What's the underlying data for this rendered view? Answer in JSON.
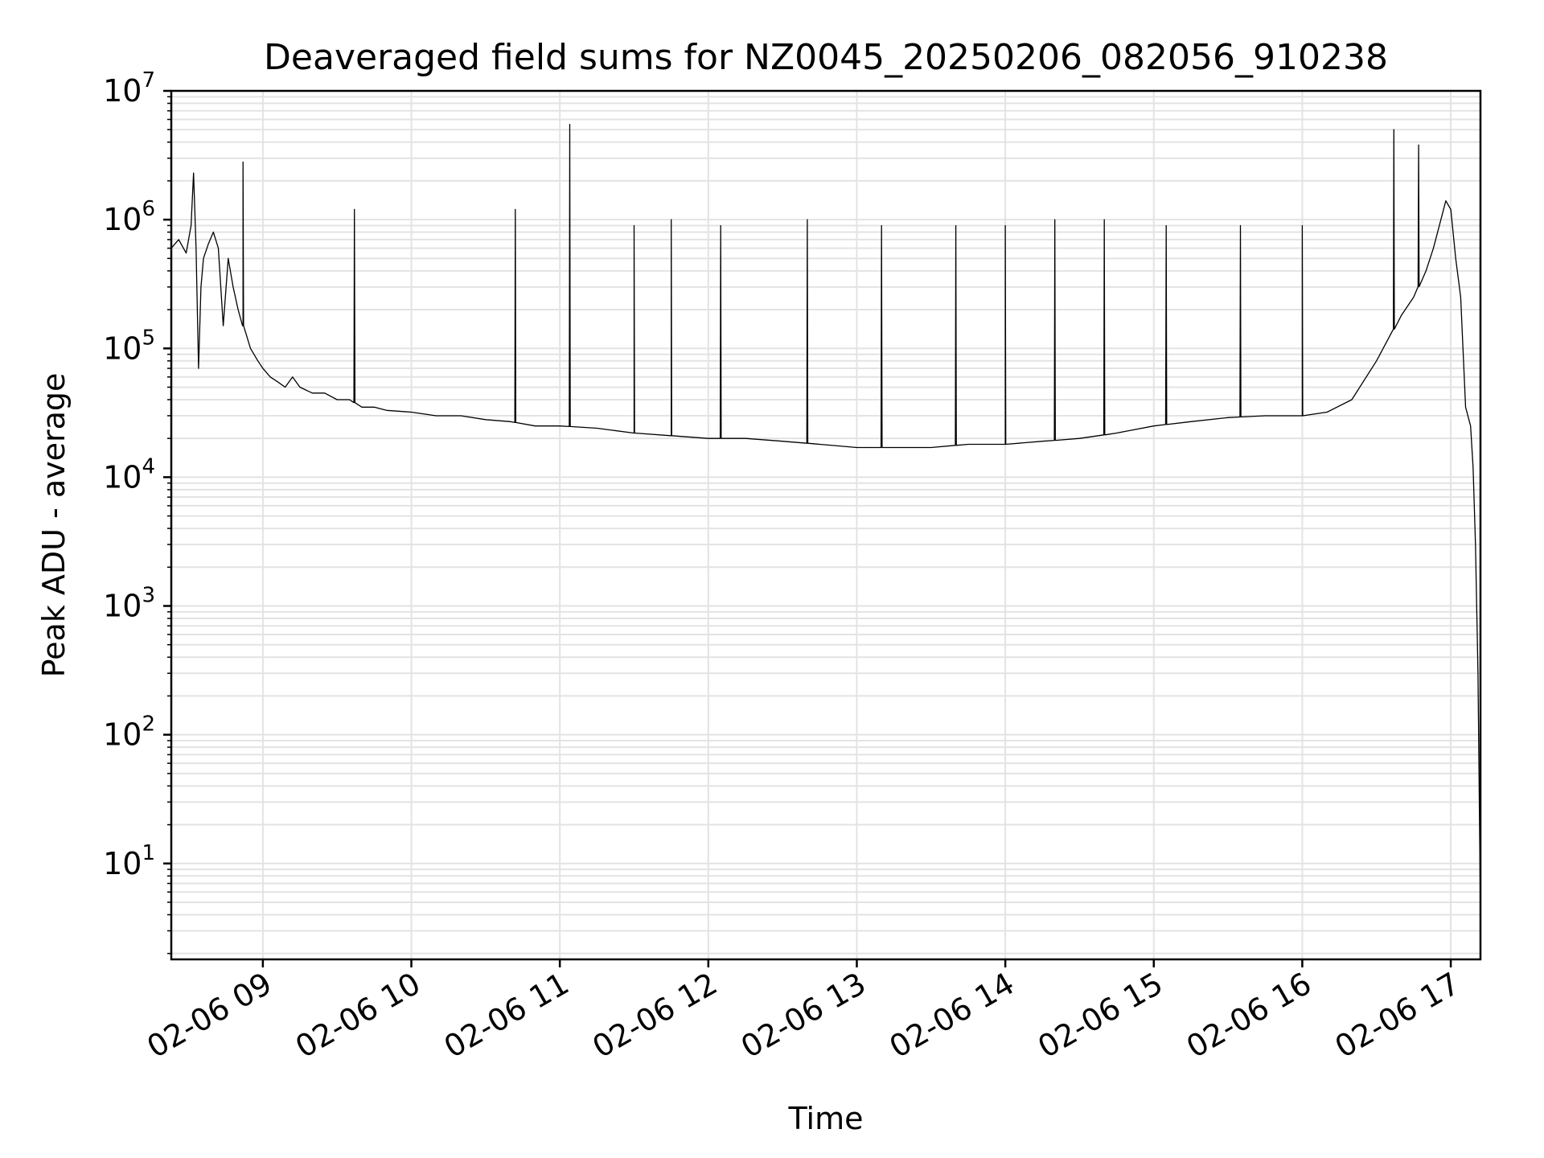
{
  "chart_data": {
    "type": "line",
    "title": "Deaveraged field sums for NZ0045_20250206_082056_910238",
    "xlabel": "Time",
    "ylabel": "Peak ADU - average",
    "yscale": "log",
    "ylim": [
      1.8,
      10000000
    ],
    "xlim": [
      "2025-02-06 08:23",
      "2025-02-06 17:12"
    ],
    "grid": true,
    "x_ticks": [
      {
        "t": "2025-02-06 09:00",
        "label": "02-06 09"
      },
      {
        "t": "2025-02-06 10:00",
        "label": "02-06 10"
      },
      {
        "t": "2025-02-06 11:00",
        "label": "02-06 11"
      },
      {
        "t": "2025-02-06 12:00",
        "label": "02-06 12"
      },
      {
        "t": "2025-02-06 13:00",
        "label": "02-06 13"
      },
      {
        "t": "2025-02-06 14:00",
        "label": "02-06 14"
      },
      {
        "t": "2025-02-06 15:00",
        "label": "02-06 15"
      },
      {
        "t": "2025-02-06 16:00",
        "label": "02-06 16"
      },
      {
        "t": "2025-02-06 17:00",
        "label": "02-06 17"
      }
    ],
    "y_ticks": [
      {
        "value": 10,
        "base": "10",
        "exp": "1"
      },
      {
        "value": 100,
        "base": "10",
        "exp": "2"
      },
      {
        "value": 1000,
        "base": "10",
        "exp": "3"
      },
      {
        "value": 10000,
        "base": "10",
        "exp": "4"
      },
      {
        "value": 100000,
        "base": "10",
        "exp": "5"
      },
      {
        "value": 1000000,
        "base": "10",
        "exp": "6"
      },
      {
        "value": 10000000,
        "base": "10",
        "exp": "7"
      }
    ],
    "series": [
      {
        "color": "#000000",
        "x": [
          "2025-02-06 08:23",
          "2025-02-06 08:26",
          "2025-02-06 08:29",
          "2025-02-06 08:31",
          "2025-02-06 08:32",
          "2025-02-06 08:33",
          "2025-02-06 08:34",
          "2025-02-06 08:35",
          "2025-02-06 08:36",
          "2025-02-06 08:38",
          "2025-02-06 08:40",
          "2025-02-06 08:42",
          "2025-02-06 08:44",
          "2025-02-06 08:46",
          "2025-02-06 08:48",
          "2025-02-06 08:50",
          "2025-02-06 08:52",
          "2025-02-06 08:55",
          "2025-02-06 08:58",
          "2025-02-06 09:00",
          "2025-02-06 09:03",
          "2025-02-06 09:06",
          "2025-02-06 09:09",
          "2025-02-06 09:12",
          "2025-02-06 09:15",
          "2025-02-06 09:20",
          "2025-02-06 09:25",
          "2025-02-06 09:30",
          "2025-02-06 09:35",
          "2025-02-06 09:40",
          "2025-02-06 09:45",
          "2025-02-06 09:50",
          "2025-02-06 10:00",
          "2025-02-06 10:10",
          "2025-02-06 10:20",
          "2025-02-06 10:30",
          "2025-02-06 10:40",
          "2025-02-06 10:50",
          "2025-02-06 11:00",
          "2025-02-06 11:15",
          "2025-02-06 11:30",
          "2025-02-06 11:45",
          "2025-02-06 12:00",
          "2025-02-06 12:15",
          "2025-02-06 12:30",
          "2025-02-06 12:45",
          "2025-02-06 13:00",
          "2025-02-06 13:15",
          "2025-02-06 13:30",
          "2025-02-06 13:45",
          "2025-02-06 14:00",
          "2025-02-06 14:15",
          "2025-02-06 14:30",
          "2025-02-06 14:45",
          "2025-02-06 15:00",
          "2025-02-06 15:15",
          "2025-02-06 15:30",
          "2025-02-06 15:45",
          "2025-02-06 16:00",
          "2025-02-06 16:10",
          "2025-02-06 16:20",
          "2025-02-06 16:30",
          "2025-02-06 16:40",
          "2025-02-06 16:45",
          "2025-02-06 16:50",
          "2025-02-06 16:53",
          "2025-02-06 16:56",
          "2025-02-06 16:58",
          "2025-02-06 17:00",
          "2025-02-06 17:02",
          "2025-02-06 17:04",
          "2025-02-06 17:06",
          "2025-02-06 17:08",
          "2025-02-06 17:09",
          "2025-02-06 17:10",
          "2025-02-06 17:11",
          "2025-02-06 17:12"
        ],
        "y": [
          600000,
          700000,
          550000,
          900000,
          2300000,
          600000,
          70000,
          300000,
          500000,
          650000,
          800000,
          600000,
          150000,
          500000,
          300000,
          200000,
          150000,
          100000,
          80000,
          70000,
          60000,
          55000,
          50000,
          60000,
          50000,
          45000,
          45000,
          40000,
          40000,
          35000,
          35000,
          33000,
          32000,
          30000,
          30000,
          28000,
          27000,
          25000,
          25000,
          24000,
          22000,
          21000,
          20000,
          20000,
          19000,
          18000,
          17000,
          17000,
          17000,
          18000,
          18000,
          19000,
          20000,
          22000,
          25000,
          27000,
          29000,
          30000,
          30000,
          32000,
          40000,
          80000,
          180000,
          250000,
          400000,
          600000,
          1000000,
          1400000,
          1200000,
          500000,
          250000,
          35000,
          25000,
          12000,
          3000,
          300,
          4
        ]
      }
    ],
    "spikes": [
      {
        "t": "2025-02-06 08:52",
        "value": 2800000
      },
      {
        "t": "2025-02-06 09:37",
        "value": 1200000
      },
      {
        "t": "2025-02-06 10:42",
        "value": 1200000
      },
      {
        "t": "2025-02-06 11:04",
        "value": 5500000
      },
      {
        "t": "2025-02-06 11:30",
        "value": 900000
      },
      {
        "t": "2025-02-06 11:45",
        "value": 1000000
      },
      {
        "t": "2025-02-06 12:05",
        "value": 900000
      },
      {
        "t": "2025-02-06 12:40",
        "value": 1000000
      },
      {
        "t": "2025-02-06 13:10",
        "value": 900000
      },
      {
        "t": "2025-02-06 13:40",
        "value": 900000
      },
      {
        "t": "2025-02-06 14:00",
        "value": 900000
      },
      {
        "t": "2025-02-06 14:20",
        "value": 1000000
      },
      {
        "t": "2025-02-06 14:40",
        "value": 1000000
      },
      {
        "t": "2025-02-06 15:05",
        "value": 900000
      },
      {
        "t": "2025-02-06 15:35",
        "value": 900000
      },
      {
        "t": "2025-02-06 16:00",
        "value": 900000
      },
      {
        "t": "2025-02-06 16:37",
        "value": 5000000
      },
      {
        "t": "2025-02-06 16:47",
        "value": 3800000
      }
    ]
  }
}
